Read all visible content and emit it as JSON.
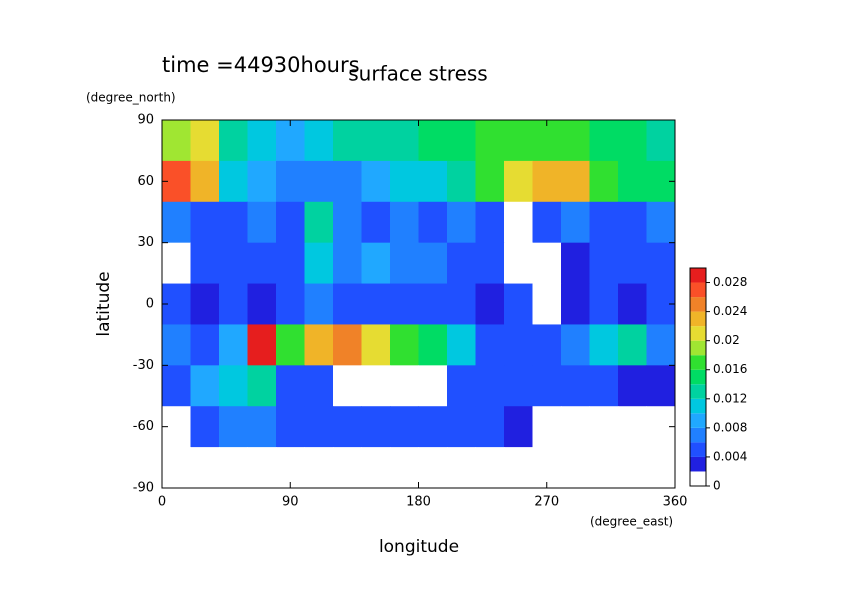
{
  "chart_data": {
    "type": "contour",
    "title": "surface stress",
    "subtitle": "time =44930hours",
    "x_label": "longitude",
    "x_unit": "(degree_east)",
    "y_label": "latitude",
    "y_unit": "(degree_north)",
    "xlim": [
      0,
      360
    ],
    "ylim": [
      -90,
      90
    ],
    "xticks": [
      0,
      90,
      180,
      270,
      360
    ],
    "yticks": [
      -90,
      -60,
      -30,
      0,
      30,
      60,
      90
    ],
    "values": [
      [
        0.018,
        0.02,
        0.012,
        0.01,
        0.008,
        0.01,
        0.012,
        0.012,
        0.012,
        0.014,
        0.014,
        0.016,
        0.016,
        0.016,
        0.016,
        0.014,
        0.014,
        0.012
      ],
      [
        0.026,
        0.022,
        0.01,
        0.008,
        0.006,
        0.006,
        0.006,
        0.008,
        0.01,
        0.01,
        0.012,
        0.016,
        0.02,
        0.022,
        0.022,
        0.016,
        0.014,
        0.014
      ],
      [
        0.006,
        0.005,
        0.005,
        0.006,
        0.005,
        0.012,
        0.006,
        0.005,
        0.006,
        0.005,
        0.006,
        0.004,
        0,
        0.004,
        0.006,
        0.004,
        0.004,
        0.006
      ],
      [
        0,
        0.004,
        0.005,
        0.004,
        0.004,
        0.01,
        0.006,
        0.008,
        0.006,
        0.006,
        0.004,
        0.004,
        0,
        0,
        0.003,
        0.004,
        0.004,
        0.005
      ],
      [
        0.004,
        0.003,
        0.004,
        0.002,
        0.004,
        0.006,
        0.004,
        0.004,
        0.005,
        0.004,
        0.004,
        0.003,
        0.004,
        0,
        0.003,
        0.004,
        0.003,
        0.004
      ],
      [
        0.006,
        0.005,
        0.008,
        0.028,
        0.016,
        0.022,
        0.024,
        0.02,
        0.016,
        0.014,
        0.01,
        0.004,
        0.004,
        0.004,
        0.006,
        0.01,
        0.012,
        0.006
      ],
      [
        0.004,
        0.008,
        0.01,
        0.012,
        0.004,
        0.004,
        0,
        0,
        0,
        0,
        0.004,
        0.004,
        0.005,
        0.004,
        0.004,
        0.004,
        0.002,
        0.002
      ],
      [
        0,
        0.004,
        0.006,
        0.006,
        0.004,
        0.004,
        0.005,
        0.004,
        0.004,
        0.005,
        0.004,
        0.004,
        0.002,
        0,
        0,
        0,
        0,
        0
      ],
      [
        0,
        0,
        0,
        0,
        0,
        0,
        0,
        0,
        0,
        0,
        0,
        0,
        0,
        0,
        0,
        0,
        0,
        0
      ]
    ],
    "levels": [
      0,
      0.002,
      0.004,
      0.006,
      0.008,
      0.01,
      0.012,
      0.014,
      0.016,
      0.018,
      0.02,
      0.022,
      0.024,
      0.026,
      0.028,
      0.03
    ],
    "colors": [
      "#ffffff",
      "#2020e0",
      "#2050ff",
      "#2080ff",
      "#20a8ff",
      "#00c8e0",
      "#00d2a0",
      "#00dc64",
      "#30e030",
      "#a0e632",
      "#e6dc32",
      "#f0b428",
      "#f08228",
      "#fa5028",
      "#e61e1e"
    ],
    "colorbar_ticks": [
      0,
      0.004,
      0.008,
      0.012,
      0.016,
      0.02,
      0.024,
      0.028
    ]
  }
}
